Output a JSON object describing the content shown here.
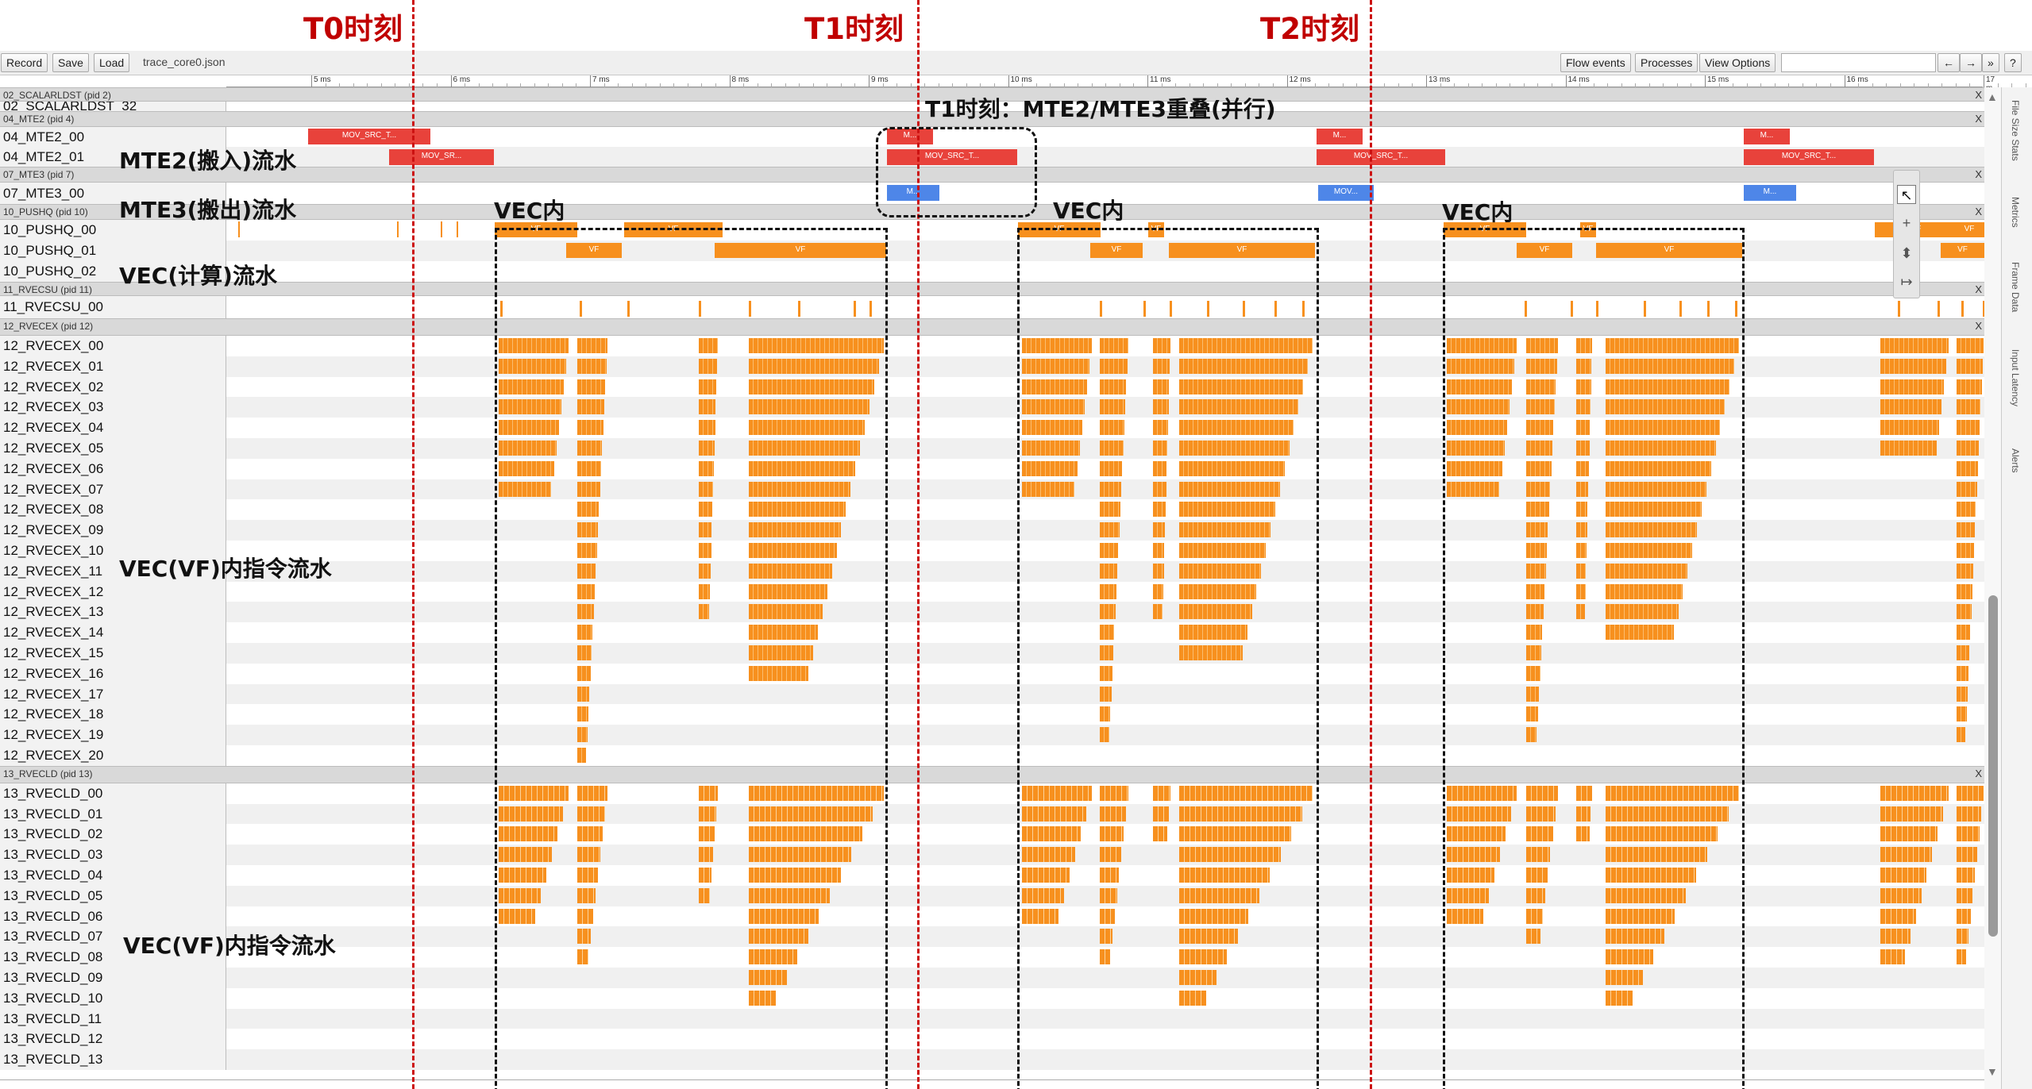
{
  "time_markers": [
    "T0时刻",
    "T1时刻",
    "T2时刻"
  ],
  "toolbar": {
    "record": "Record",
    "save": "Save",
    "load": "Load",
    "filename": "trace_core0.json",
    "flow_events": "Flow events",
    "processes": "Processes",
    "view_options": "View Options",
    "nav_left": "←",
    "nav_right": "→",
    "nav_more": "»",
    "help": "?"
  },
  "ruler_labels": [
    "5 ms",
    "6 ms",
    "7 ms",
    "8 ms",
    "9 ms",
    "10 ms",
    "11 ms",
    "12 ms",
    "13 ms",
    "14 ms",
    "15 ms",
    "16 ms",
    "17 m"
  ],
  "process_headers": {
    "scalarldst": "02_SCALARLDST (pid 2)",
    "mte2": "04_MTE2 (pid 4)",
    "mte3": "07_MTE3 (pid 7)",
    "pushq": "10_PUSHQ (pid 10)",
    "rvecsu": "11_RVECSU (pid 11)",
    "rvecex": "12_RVECEX (pid 12)",
    "rvecld": "13_RVECLD (pid 13)",
    "close": "X"
  },
  "threads": {
    "scalarldst": "02_SCALARLDST_32",
    "mte2": [
      "04_MTE2_00",
      "04_MTE2_01"
    ],
    "mte3": [
      "07_MTE3_00"
    ],
    "pushq": [
      "10_PUSHQ_00",
      "10_PUSHQ_01",
      "10_PUSHQ_02"
    ],
    "rvecsu": [
      "11_RVECSU_00"
    ],
    "rvecex": [
      "12_RVECEX_00",
      "12_RVECEX_01",
      "12_RVECEX_02",
      "12_RVECEX_03",
      "12_RVECEX_04",
      "12_RVECEX_05",
      "12_RVECEX_06",
      "12_RVECEX_07",
      "12_RVECEX_08",
      "12_RVECEX_09",
      "12_RVECEX_10",
      "12_RVECEX_11",
      "12_RVECEX_12",
      "12_RVECEX_13",
      "12_RVECEX_14",
      "12_RVECEX_15",
      "12_RVECEX_16",
      "12_RVECEX_17",
      "12_RVECEX_18",
      "12_RVECEX_19",
      "12_RVECEX_20"
    ],
    "rvecld": [
      "13_RVECLD_00",
      "13_RVECLD_01",
      "13_RVECLD_02",
      "13_RVECLD_03",
      "13_RVECLD_04",
      "13_RVECLD_05",
      "13_RVECLD_06",
      "13_RVECLD_07",
      "13_RVECLD_08",
      "13_RVECLD_09",
      "13_RVECLD_10",
      "13_RVECLD_11",
      "13_RVECLD_12",
      "13_RVECLD_13"
    ]
  },
  "slice_labels": {
    "mov_src_t": "MOV_SRC_T...",
    "mov_sr": "MOV_SR...",
    "m": "M...",
    "mov": "MOV...",
    "vf": "VF"
  },
  "annotations": {
    "mte2_flow": "MTE2(搬入)流水",
    "mte3_flow": "MTE3(搬出)流水",
    "vec_flow": "VEC(计算)流水",
    "vf_flow_1": "VEC(VF)内指令流水",
    "vf_flow_2": "VEC(VF)内指令流水",
    "t1_overlap": "T1时刻：MTE2/MTE3重叠(并行)",
    "vec_in_1": "VEC内",
    "vec_in_2": "VEC内",
    "vec_in_3": "VEC内"
  },
  "side_tabs": [
    "File Size Stats",
    "Metrics",
    "Frame Data",
    "Input Latency",
    "Alerts"
  ],
  "palette_icons": [
    "cursor-icon",
    "zoom-in-icon",
    "pan-icon",
    "timing-icon"
  ],
  "colors": {
    "marker_red": "#cc1111",
    "mte2_slice": "#e8423b",
    "mte3_slice": "#4e86e8",
    "vec_slice": "#f7901e"
  }
}
